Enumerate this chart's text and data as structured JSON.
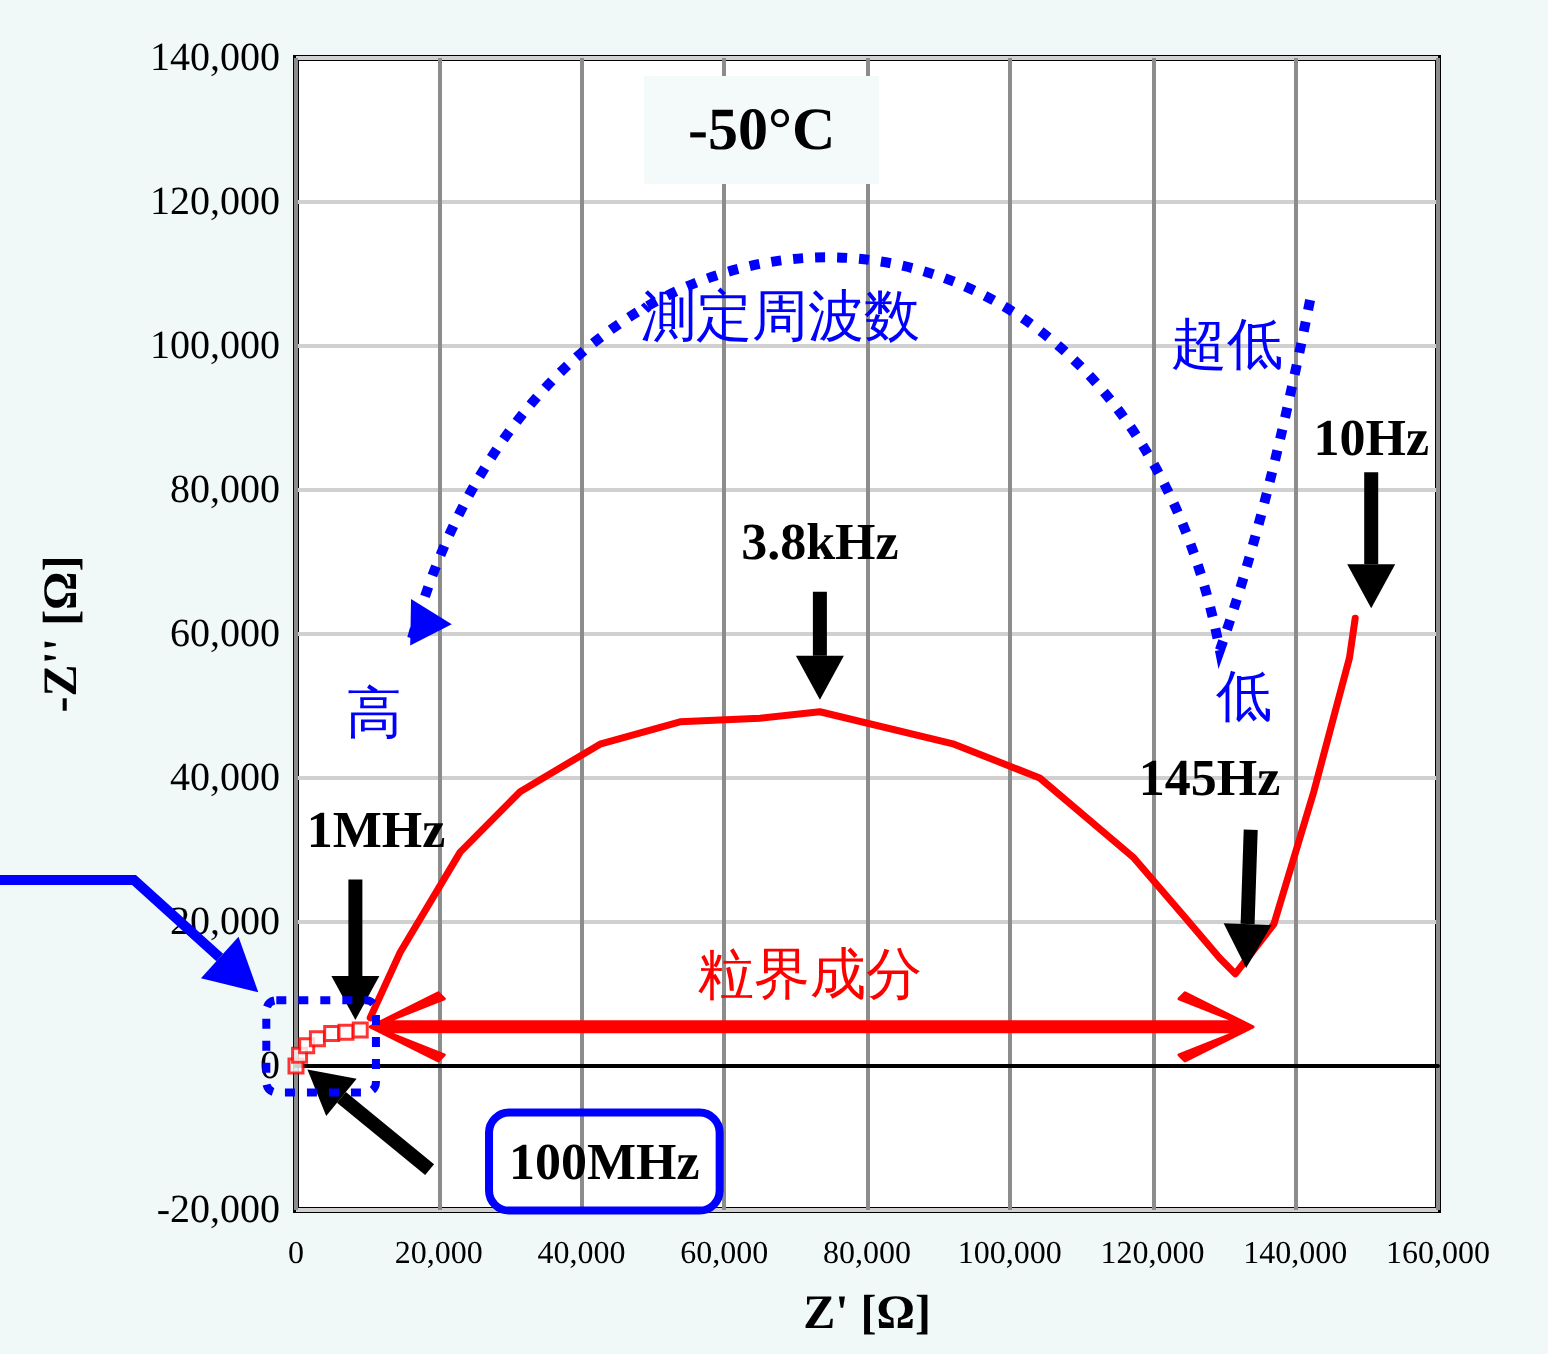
{
  "chart_data": {
    "type": "line",
    "title": "-50°C",
    "xlabel": "Z' [Ω]",
    "ylabel": "-Z'' [Ω]",
    "xlim": [
      0,
      160000
    ],
    "ylim": [
      -20000,
      140000
    ],
    "xticks": [
      {
        "value": 0,
        "label": "0"
      },
      {
        "value": 20000,
        "label": "20,000"
      },
      {
        "value": 40000,
        "label": "40,000"
      },
      {
        "value": 60000,
        "label": "60,000"
      },
      {
        "value": 80000,
        "label": "80,000"
      },
      {
        "value": 100000,
        "label": "100,000"
      },
      {
        "value": 120000,
        "label": "120,000"
      },
      {
        "value": 140000,
        "label": "140,000"
      },
      {
        "value": 160000,
        "label": "160,000"
      }
    ],
    "yticks": [
      {
        "value": -20000,
        "label": "-20,000"
      },
      {
        "value": 0,
        "label": "0"
      },
      {
        "value": 20000,
        "label": "20,000"
      },
      {
        "value": 40000,
        "label": "40,000"
      },
      {
        "value": 60000,
        "label": "60,000"
      },
      {
        "value": 80000,
        "label": "80,000"
      },
      {
        "value": 100000,
        "label": "100,000"
      },
      {
        "value": 120000,
        "label": "120,000"
      },
      {
        "value": 140000,
        "label": "140,000"
      }
    ],
    "grid": true,
    "series": [
      {
        "type": "scatter",
        "marker": "square",
        "color": "#ff0000",
        "x": [
          0,
          500,
          1500,
          3000,
          5000,
          7000,
          9000
        ],
        "values": [
          0,
          1500,
          2800,
          3800,
          4500,
          4700,
          5000
        ]
      },
      {
        "type": "line",
        "marker": "none",
        "color": "#ff0000",
        "x": [
          10400,
          14600,
          23000,
          31400,
          42600,
          53800,
          65000,
          73400,
          92200,
          104200,
          117400,
          124600,
          129400,
          131600,
          137000,
          142600,
          147600,
          148400
        ],
        "values": [
          6700,
          15800,
          29700,
          38100,
          44700,
          47800,
          48300,
          49200,
          44700,
          40000,
          28900,
          20600,
          15000,
          12800,
          19700,
          38100,
          56700,
          62200
        ]
      }
    ],
    "annotations": [
      "測定周波数",
      "超低",
      "高",
      "低",
      {
        "text": "3.8kHz",
        "x": 73400,
        "y": 49200
      },
      "1MHz",
      "145Hz",
      {
        "text": "10Hz",
        "x": 148400,
        "y": 62200
      },
      "100MHz",
      "粒界成分"
    ]
  }
}
